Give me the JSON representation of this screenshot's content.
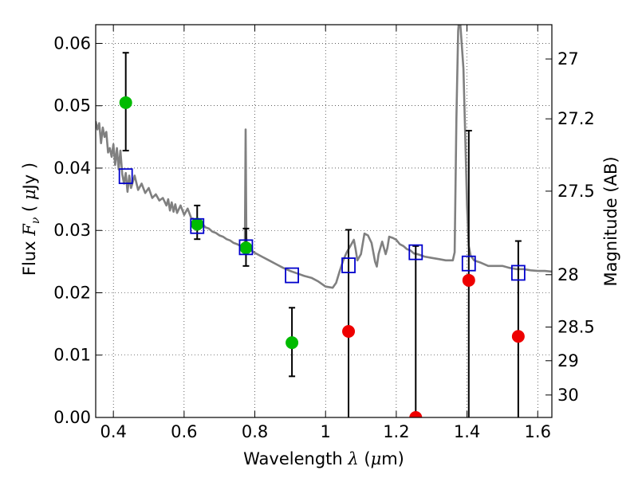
{
  "chart_data": {
    "type": "scatter",
    "xlabel": "Wavelength  λ (μm)",
    "ylabel": "Flux  F_ν  ( μJy )",
    "ylabel_parts": {
      "a": "Flux  ",
      "b": "F",
      "c": "ν",
      "d": "  ( ",
      "e": "μ",
      "f": "Jy )"
    },
    "xlabel_parts": {
      "a": "Wavelength  ",
      "b": "λ",
      "c": " (",
      "d": "μ",
      "e": "m)"
    },
    "y2label": "Magnitude (AB)",
    "xlim": [
      0.35,
      1.64
    ],
    "ylim": [
      0.0,
      0.063
    ],
    "grid": true,
    "x_ticks": [
      0.4,
      0.6,
      0.8,
      1.0,
      1.2,
      1.4,
      1.6
    ],
    "x_tick_labels": [
      "0.4",
      "0.6",
      "0.8",
      "1",
      "1.2",
      "1.4",
      "1.6"
    ],
    "y_ticks": [
      0.0,
      0.01,
      0.02,
      0.03,
      0.04,
      0.05,
      0.06
    ],
    "y_tick_labels": [
      "0.00",
      "0.01",
      "0.02",
      "0.03",
      "0.04",
      "0.05",
      "0.06"
    ],
    "y2_ticks": [
      {
        "flux": 0.0575,
        "label": "27"
      },
      {
        "flux": 0.0479,
        "label": "27.2"
      },
      {
        "flux": 0.0363,
        "label": "27.5"
      },
      {
        "flux": 0.0229,
        "label": "28"
      },
      {
        "flux": 0.0145,
        "label": "28.5"
      },
      {
        "flux": 0.0091,
        "label": "29"
      },
      {
        "flux": 0.0036,
        "label": "30"
      }
    ],
    "series": [
      {
        "kind": "line",
        "color": "#808080",
        "points": [
          [
            0.35,
            0.0475
          ],
          [
            0.355,
            0.0462
          ],
          [
            0.36,
            0.0472
          ],
          [
            0.365,
            0.044
          ],
          [
            0.37,
            0.0465
          ],
          [
            0.375,
            0.045
          ],
          [
            0.38,
            0.0458
          ],
          [
            0.385,
            0.0425
          ],
          [
            0.39,
            0.0432
          ],
          [
            0.395,
            0.0418
          ],
          [
            0.4,
            0.0438
          ],
          [
            0.405,
            0.0405
          ],
          [
            0.41,
            0.0432
          ],
          [
            0.415,
            0.0398
          ],
          [
            0.42,
            0.0428
          ],
          [
            0.425,
            0.039
          ],
          [
            0.43,
            0.0375
          ],
          [
            0.435,
            0.0392
          ],
          [
            0.44,
            0.0362
          ],
          [
            0.445,
            0.0388
          ],
          [
            0.45,
            0.0368
          ],
          [
            0.46,
            0.0388
          ],
          [
            0.47,
            0.0365
          ],
          [
            0.48,
            0.0375
          ],
          [
            0.49,
            0.036
          ],
          [
            0.5,
            0.0368
          ],
          [
            0.51,
            0.0352
          ],
          [
            0.52,
            0.0358
          ],
          [
            0.53,
            0.0348
          ],
          [
            0.54,
            0.0352
          ],
          [
            0.55,
            0.034
          ],
          [
            0.555,
            0.035
          ],
          [
            0.56,
            0.0332
          ],
          [
            0.565,
            0.0345
          ],
          [
            0.57,
            0.033
          ],
          [
            0.575,
            0.0342
          ],
          [
            0.58,
            0.0328
          ],
          [
            0.59,
            0.034
          ],
          [
            0.6,
            0.0325
          ],
          [
            0.61,
            0.0335
          ],
          [
            0.62,
            0.032
          ],
          [
            0.63,
            0.0318
          ],
          [
            0.64,
            0.031
          ],
          [
            0.65,
            0.0312
          ],
          [
            0.66,
            0.0305
          ],
          [
            0.67,
            0.0303
          ],
          [
            0.68,
            0.0298
          ],
          [
            0.69,
            0.0296
          ],
          [
            0.7,
            0.0292
          ],
          [
            0.71,
            0.029
          ],
          [
            0.72,
            0.0286
          ],
          [
            0.73,
            0.0284
          ],
          [
            0.74,
            0.028
          ],
          [
            0.75,
            0.0278
          ],
          [
            0.76,
            0.0275
          ],
          [
            0.77,
            0.0275
          ],
          [
            0.772,
            0.028
          ],
          [
            0.774,
            0.0462
          ],
          [
            0.776,
            0.029
          ],
          [
            0.778,
            0.0272
          ],
          [
            0.79,
            0.0268
          ],
          [
            0.8,
            0.0264
          ],
          [
            0.82,
            0.0258
          ],
          [
            0.84,
            0.0252
          ],
          [
            0.86,
            0.0246
          ],
          [
            0.88,
            0.024
          ],
          [
            0.9,
            0.0235
          ],
          [
            0.92,
            0.0231
          ],
          [
            0.94,
            0.0227
          ],
          [
            0.96,
            0.0224
          ],
          [
            0.98,
            0.0218
          ],
          [
            1.0,
            0.021
          ],
          [
            1.02,
            0.0208
          ],
          [
            1.03,
            0.0216
          ],
          [
            1.04,
            0.0235
          ],
          [
            1.05,
            0.0252
          ],
          [
            1.06,
            0.0265
          ],
          [
            1.07,
            0.0275
          ],
          [
            1.08,
            0.0285
          ],
          [
            1.085,
            0.027
          ],
          [
            1.09,
            0.0252
          ],
          [
            1.1,
            0.0262
          ],
          [
            1.11,
            0.0295
          ],
          [
            1.12,
            0.0292
          ],
          [
            1.13,
            0.028
          ],
          [
            1.14,
            0.025
          ],
          [
            1.145,
            0.0242
          ],
          [
            1.15,
            0.0262
          ],
          [
            1.16,
            0.0282
          ],
          [
            1.17,
            0.0262
          ],
          [
            1.175,
            0.0272
          ],
          [
            1.18,
            0.029
          ],
          [
            1.19,
            0.0288
          ],
          [
            1.2,
            0.0285
          ],
          [
            1.21,
            0.0278
          ],
          [
            1.22,
            0.0275
          ],
          [
            1.23,
            0.027
          ],
          [
            1.24,
            0.0268
          ],
          [
            1.25,
            0.0263
          ],
          [
            1.26,
            0.0262
          ],
          [
            1.27,
            0.026
          ],
          [
            1.28,
            0.0258
          ],
          [
            1.3,
            0.0256
          ],
          [
            1.32,
            0.0254
          ],
          [
            1.34,
            0.0252
          ],
          [
            1.36,
            0.0252
          ],
          [
            1.365,
            0.0265
          ],
          [
            1.37,
            0.048
          ],
          [
            1.375,
            0.062
          ],
          [
            1.378,
            0.064
          ],
          [
            1.38,
            0.064
          ],
          [
            1.385,
            0.06
          ],
          [
            1.39,
            0.056
          ],
          [
            1.395,
            0.045
          ],
          [
            1.4,
            0.034
          ],
          [
            1.405,
            0.0275
          ],
          [
            1.41,
            0.026
          ],
          [
            1.42,
            0.0252
          ],
          [
            1.44,
            0.0248
          ],
          [
            1.46,
            0.0243
          ],
          [
            1.48,
            0.0243
          ],
          [
            1.5,
            0.0243
          ],
          [
            1.52,
            0.024
          ],
          [
            1.54,
            0.0238
          ],
          [
            1.56,
            0.0238
          ],
          [
            1.58,
            0.0236
          ],
          [
            1.6,
            0.0235
          ],
          [
            1.62,
            0.0235
          ],
          [
            1.64,
            0.0234
          ]
        ]
      },
      {
        "kind": "points",
        "color": "#00bb00",
        "marker": "circle",
        "points": [
          {
            "x": 0.435,
            "y": 0.0505,
            "err": [
              0.0428,
              0.0585
            ]
          },
          {
            "x": 0.637,
            "y": 0.031,
            "err": [
              0.0286,
              0.034
            ]
          },
          {
            "x": 0.775,
            "y": 0.0272,
            "err": [
              0.0243,
              0.0303
            ]
          },
          {
            "x": 0.905,
            "y": 0.012,
            "err": [
              0.0066,
              0.0176
            ]
          }
        ]
      },
      {
        "kind": "points",
        "color": "#ee0000",
        "marker": "circle",
        "points": [
          {
            "x": 1.065,
            "y": 0.0138,
            "err": [
              0.0,
              0.0301
            ]
          },
          {
            "x": 1.255,
            "y": 0.0,
            "err": [
              0.0,
              0.0275
            ]
          },
          {
            "x": 1.405,
            "y": 0.022,
            "err": [
              0.0,
              0.046
            ]
          },
          {
            "x": 1.545,
            "y": 0.013,
            "err": [
              0.0,
              0.0283
            ]
          }
        ]
      },
      {
        "kind": "points",
        "color": "#0000cc",
        "marker": "square-open",
        "points": [
          {
            "x": 0.435,
            "y": 0.0387
          },
          {
            "x": 0.637,
            "y": 0.0307
          },
          {
            "x": 0.775,
            "y": 0.0273
          },
          {
            "x": 0.905,
            "y": 0.0228
          },
          {
            "x": 1.065,
            "y": 0.0244
          },
          {
            "x": 1.255,
            "y": 0.0265
          },
          {
            "x": 1.405,
            "y": 0.0247
          },
          {
            "x": 1.545,
            "y": 0.0232
          }
        ]
      }
    ]
  }
}
